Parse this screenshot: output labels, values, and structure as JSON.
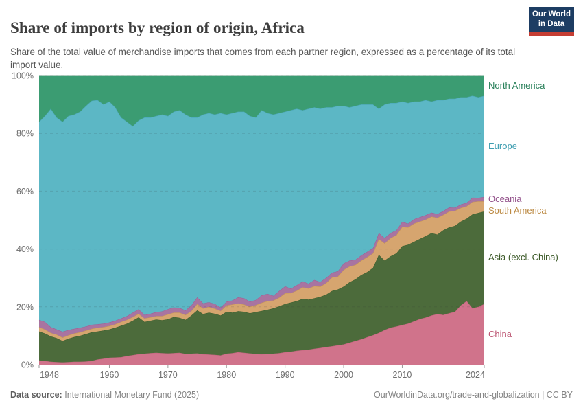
{
  "header": {
    "title": "Share of imports by region of origin, Africa",
    "subtitle": "Share of the total value of merchandise imports that comes from each partner region, expressed as a percentage of its total import value.",
    "logo": {
      "line1": "Our World",
      "line2": "in Data",
      "bg_color": "#1d3d63",
      "bar_color": "#c53d33"
    }
  },
  "footer": {
    "datasource_label": "Data source:",
    "datasource_value": "International Monetary Fund (2025)",
    "link": "OurWorldinData.org/trade-and-globalization | CC BY"
  },
  "chart_data": {
    "type": "area",
    "stacked": true,
    "unit": "%",
    "title": "Share of imports by region of origin, Africa",
    "xlabel": "",
    "ylabel": "",
    "ylim": [
      0,
      100
    ],
    "grid": "dashed-horizontal",
    "legend_position": "right",
    "x_ticks": [
      1948,
      1960,
      1970,
      1980,
      1990,
      2000,
      2010,
      2024
    ],
    "y_ticks": [
      0,
      20,
      40,
      60,
      80,
      100
    ],
    "x": [
      1948,
      1949,
      1950,
      1951,
      1952,
      1953,
      1954,
      1955,
      1956,
      1957,
      1958,
      1959,
      1960,
      1961,
      1962,
      1963,
      1964,
      1965,
      1966,
      1967,
      1968,
      1969,
      1970,
      1971,
      1972,
      1973,
      1974,
      1975,
      1976,
      1977,
      1978,
      1979,
      1980,
      1981,
      1982,
      1983,
      1984,
      1985,
      1986,
      1987,
      1988,
      1989,
      1990,
      1991,
      1992,
      1993,
      1994,
      1995,
      1996,
      1997,
      1998,
      1999,
      2000,
      2001,
      2002,
      2003,
      2004,
      2005,
      2006,
      2007,
      2008,
      2009,
      2010,
      2011,
      2012,
      2013,
      2014,
      2015,
      2016,
      2017,
      2018,
      2019,
      2020,
      2021,
      2022,
      2023,
      2024
    ],
    "series": [
      {
        "name": "China",
        "color": "#D0738B",
        "line_color": "#BE5A76",
        "values": [
          1.5,
          1.3,
          1.0,
          0.9,
          0.8,
          0.9,
          1.0,
          1.0,
          1.1,
          1.3,
          1.8,
          2.1,
          2.4,
          2.5,
          2.6,
          3.0,
          3.3,
          3.6,
          3.8,
          4.0,
          4.1,
          4.0,
          3.9,
          4.0,
          4.1,
          3.7,
          3.8,
          3.9,
          3.6,
          3.5,
          3.4,
          3.2,
          3.8,
          4.0,
          4.3,
          4.1,
          3.9,
          3.7,
          3.6,
          3.7,
          3.8,
          4.0,
          4.3,
          4.5,
          4.8,
          5.0,
          5.2,
          5.5,
          5.8,
          6.1,
          6.4,
          6.7,
          7.0,
          7.6,
          8.2,
          8.8,
          9.5,
          10.2,
          11.0,
          12.0,
          12.8,
          13.2,
          13.7,
          14.2,
          15.0,
          15.8,
          16.3,
          17.0,
          17.5,
          17.2,
          17.8,
          18.3,
          20.5,
          22.0,
          19.5,
          20.0,
          21.0
        ]
      },
      {
        "name": "Asia (excl. China)",
        "color": "#4C6B3B",
        "line_color": "#3A5826",
        "values": [
          10.0,
          9.5,
          8.8,
          8.3,
          7.4,
          8.1,
          8.6,
          9.0,
          9.5,
          9.9,
          9.7,
          9.7,
          9.8,
          10.3,
          10.9,
          11.2,
          11.9,
          12.8,
          11.0,
          11.2,
          11.5,
          11.4,
          11.8,
          12.5,
          12.1,
          11.8,
          13.2,
          14.9,
          13.9,
          14.5,
          14.2,
          13.8,
          14.5,
          14.0,
          14.2,
          14.2,
          13.9,
          14.5,
          15.0,
          15.3,
          15.7,
          16.2,
          16.7,
          17.0,
          17.2,
          17.8,
          17.3,
          17.5,
          17.7,
          18.1,
          19.1,
          19.3,
          20.0,
          20.9,
          21.3,
          22.2,
          22.5,
          23.3,
          27.0,
          24.0,
          24.7,
          25.3,
          27.3,
          27.3,
          27.5,
          27.7,
          28.2,
          28.5,
          27.5,
          29.3,
          29.7,
          29.7,
          29.0,
          28.5,
          32.5,
          32.5,
          32.0
        ]
      },
      {
        "name": "South America",
        "color": "#D6A56F",
        "line_color": "#BC8A43",
        "values": [
          1.5,
          1.4,
          1.2,
          1.2,
          1.2,
          1.2,
          1.2,
          1.2,
          1.2,
          1.2,
          1.3,
          1.2,
          1.2,
          1.2,
          1.3,
          1.3,
          1.3,
          1.2,
          1.2,
          1.2,
          1.2,
          1.4,
          1.7,
          1.5,
          1.8,
          1.7,
          1.6,
          2.2,
          2.0,
          2.0,
          1.8,
          1.6,
          2.2,
          2.8,
          2.7,
          2.5,
          2.2,
          2.4,
          2.8,
          3.0,
          2.7,
          3.0,
          3.7,
          3.3,
          3.6,
          4.0,
          3.9,
          4.2,
          3.5,
          4.0,
          4.7,
          4.5,
          5.8,
          5.5,
          5.0,
          5.0,
          5.2,
          5.0,
          5.5,
          6.0,
          6.3,
          6.3,
          6.7,
          6.0,
          6.3,
          6.0,
          5.7,
          5.7,
          5.8,
          5.3,
          5.5,
          5.2,
          4.7,
          4.3,
          4.3,
          4.0,
          3.5
        ]
      },
      {
        "name": "Oceania",
        "color": "#A874A1",
        "line_color": "#94538C",
        "values": [
          2.5,
          2.6,
          2.0,
          1.8,
          2.0,
          1.8,
          1.6,
          1.6,
          1.4,
          1.4,
          1.2,
          1.2,
          1.2,
          1.2,
          1.2,
          1.3,
          1.5,
          1.6,
          1.2,
          1.2,
          1.4,
          1.6,
          1.8,
          1.8,
          1.6,
          1.6,
          1.9,
          2.3,
          1.7,
          1.6,
          1.6,
          1.2,
          1.3,
          1.4,
          2.1,
          2.2,
          1.8,
          1.8,
          2.6,
          2.5,
          1.6,
          2.3,
          2.4,
          1.5,
          1.9,
          2.0,
          1.6,
          2.1,
          1.6,
          1.8,
          1.6,
          1.8,
          2.2,
          2.0,
          1.8,
          1.8,
          1.8,
          1.8,
          2.0,
          1.8,
          1.7,
          1.7,
          1.7,
          1.3,
          1.5,
          1.5,
          1.5,
          1.4,
          1.3,
          1.3,
          1.4,
          1.1,
          1.2,
          1.2,
          1.5,
          1.2,
          1.5
        ]
      },
      {
        "name": "Europe",
        "color": "#5CB7C5",
        "line_color": "#3E9DB0",
        "values": [
          68.5,
          71.2,
          75.5,
          73.3,
          72.6,
          74.0,
          74.1,
          74.7,
          76.3,
          77.5,
          77.5,
          75.8,
          76.4,
          73.8,
          69.5,
          67.2,
          64.5,
          65.3,
          68.3,
          67.9,
          67.8,
          68.1,
          66.8,
          67.7,
          68.4,
          67.7,
          65.0,
          62.2,
          65.3,
          65.4,
          65.5,
          67.2,
          64.7,
          64.8,
          64.2,
          64.5,
          64.2,
          63.1,
          64.0,
          62.5,
          62.7,
          61.5,
          60.4,
          61.7,
          61.0,
          59.2,
          60.5,
          59.7,
          59.9,
          59.0,
          57.2,
          57.2,
          54.5,
          53.0,
          53.2,
          52.2,
          51.0,
          49.7,
          43.0,
          46.2,
          45.0,
          44.0,
          41.6,
          41.7,
          40.7,
          40.0,
          39.8,
          38.4,
          39.4,
          38.4,
          37.6,
          37.7,
          37.1,
          36.5,
          35.2,
          34.8,
          35.0
        ]
      },
      {
        "name": "North America",
        "color": "#3B9C72",
        "line_color": "#29805A",
        "values": [
          16.0,
          14.0,
          11.5,
          14.5,
          16.0,
          14.0,
          13.5,
          12.5,
          10.5,
          8.7,
          8.5,
          10.0,
          9.0,
          11.0,
          14.5,
          16.0,
          17.5,
          15.5,
          14.5,
          14.5,
          14.0,
          13.5,
          14.0,
          12.5,
          12.0,
          13.5,
          14.5,
          14.5,
          13.5,
          13.0,
          13.5,
          13.0,
          13.5,
          13.0,
          12.5,
          12.5,
          14.0,
          14.5,
          12.0,
          13.0,
          13.5,
          13.0,
          12.5,
          12.0,
          11.5,
          12.0,
          11.5,
          11.0,
          11.5,
          11.0,
          11.0,
          10.5,
          10.5,
          11.0,
          10.5,
          10.0,
          10.0,
          10.0,
          11.5,
          10.0,
          9.5,
          9.5,
          9.0,
          9.5,
          9.0,
          9.0,
          8.5,
          9.0,
          8.5,
          8.5,
          8.0,
          8.0,
          7.5,
          7.5,
          7.0,
          7.5,
          7.0
        ]
      }
    ]
  }
}
